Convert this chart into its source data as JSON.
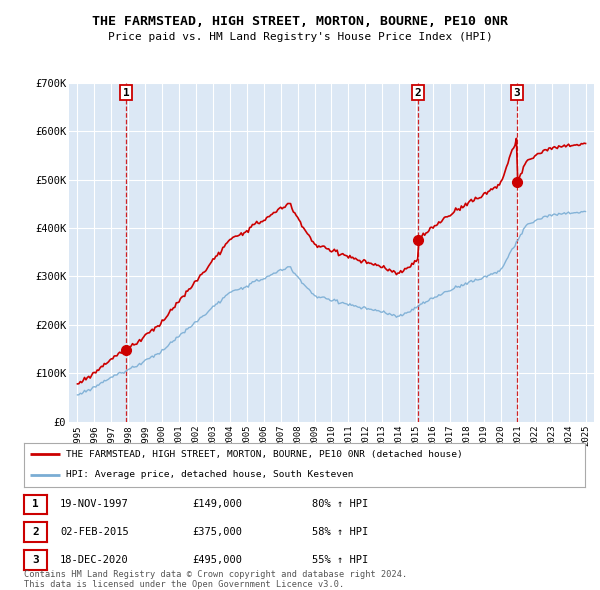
{
  "title": "THE FARMSTEAD, HIGH STREET, MORTON, BOURNE, PE10 0NR",
  "subtitle": "Price paid vs. HM Land Registry's House Price Index (HPI)",
  "background_color": "#ffffff",
  "plot_bg_color": "#dce8f5",
  "grid_color": "#ffffff",
  "sale_color": "#cc0000",
  "hpi_color": "#7aadd4",
  "dashed_line_color": "#cc0000",
  "ylim": [
    0,
    700000
  ],
  "yticks": [
    0,
    100000,
    200000,
    300000,
    400000,
    500000,
    600000,
    700000
  ],
  "ytick_labels": [
    "£0",
    "£100K",
    "£200K",
    "£300K",
    "£400K",
    "£500K",
    "£600K",
    "£700K"
  ],
  "sales": [
    {
      "date_num": 1997.88,
      "price": 149000,
      "label": "1"
    },
    {
      "date_num": 2015.09,
      "price": 375000,
      "label": "2"
    },
    {
      "date_num": 2020.96,
      "price": 495000,
      "label": "3"
    }
  ],
  "sale_dates_str": [
    "19-NOV-1997",
    "02-FEB-2015",
    "18-DEC-2020"
  ],
  "sale_prices_str": [
    "£149,000",
    "£375,000",
    "£495,000"
  ],
  "sale_hpi_pct": [
    "80% ↑ HPI",
    "58% ↑ HPI",
    "55% ↑ HPI"
  ],
  "legend_line1": "THE FARMSTEAD, HIGH STREET, MORTON, BOURNE, PE10 0NR (detached house)",
  "legend_line2": "HPI: Average price, detached house, South Kesteven",
  "footnote": "Contains HM Land Registry data © Crown copyright and database right 2024.\nThis data is licensed under the Open Government Licence v3.0.",
  "xlim_start": 1994.5,
  "xlim_end": 2025.5
}
